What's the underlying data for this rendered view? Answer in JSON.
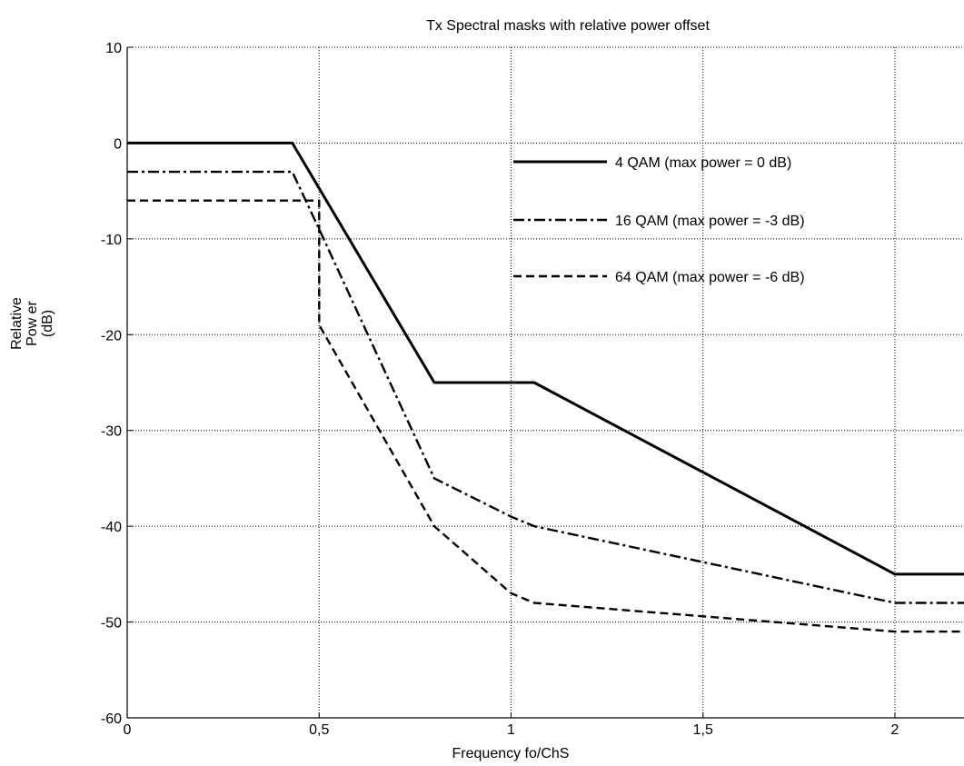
{
  "chart_data": {
    "type": "line",
    "title": "Tx Spectral masks with relative power offset",
    "xlabel": "Frequency  fo/ChS",
    "ylabel": [
      "Relative",
      "Pow er",
      "(dB)"
    ],
    "xlim": [
      0,
      2.2
    ],
    "ylim": [
      -60,
      10
    ],
    "xticks": [
      0,
      0.5,
      1,
      1.5,
      2
    ],
    "xtick_labels": [
      "0",
      "0,5",
      "1",
      "1,5",
      "2"
    ],
    "yticks": [
      10,
      0,
      -10,
      -20,
      -30,
      -40,
      -50,
      -60
    ],
    "ytick_labels": [
      "10",
      "0",
      "-10",
      "-20",
      "-30",
      "-40",
      "-50",
      "-60"
    ],
    "grid": true,
    "legend_position": "top-right",
    "series": [
      {
        "name": "4 QAM  (max power = 0 dB)",
        "style": "solid",
        "color": "#000000",
        "points": [
          [
            0,
            0
          ],
          [
            0.43,
            0
          ],
          [
            0.8,
            -25
          ],
          [
            1.06,
            -25
          ],
          [
            2.0,
            -45
          ],
          [
            2.2,
            -45
          ]
        ]
      },
      {
        "name": "16 QAM (max power = -3 dB)",
        "style": "dashdot",
        "color": "#000000",
        "points": [
          [
            0,
            -3
          ],
          [
            0.43,
            -3
          ],
          [
            0.5,
            -9
          ],
          [
            0.8,
            -35
          ],
          [
            1.0,
            -39
          ],
          [
            1.06,
            -40
          ],
          [
            2.0,
            -48
          ],
          [
            2.2,
            -48
          ]
        ]
      },
      {
        "name": "64 QAM (max power = -6 dB)",
        "style": "dashed",
        "color": "#000000",
        "points": [
          [
            0,
            -6
          ],
          [
            0.5,
            -6
          ],
          [
            0.5,
            -19
          ],
          [
            0.8,
            -40
          ],
          [
            1.0,
            -47
          ],
          [
            1.06,
            -48
          ],
          [
            2.0,
            -51
          ],
          [
            2.2,
            -51
          ]
        ]
      }
    ]
  }
}
